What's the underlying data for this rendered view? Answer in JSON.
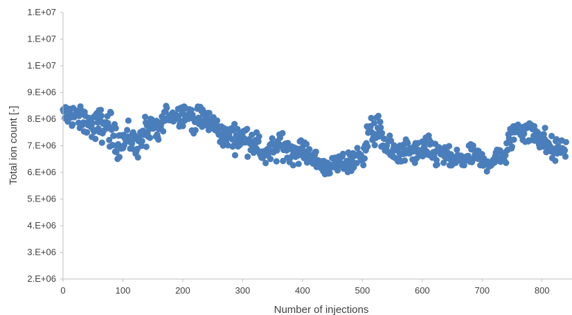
{
  "chart_data": {
    "type": "scatter",
    "title": "",
    "xlabel": "Number of injections",
    "ylabel": "Total ion count [-]",
    "xlim": [
      0,
      850
    ],
    "ylim": [
      2000000,
      12000000
    ],
    "x_ticks": [
      0,
      100,
      200,
      300,
      400,
      500,
      600,
      700,
      800
    ],
    "x_tick_labels": [
      "0",
      "100",
      "200",
      "300",
      "400",
      "500",
      "600",
      "700",
      "800"
    ],
    "y_ticks": [
      2000000,
      3000000,
      4000000,
      5000000,
      6000000,
      7000000,
      8000000,
      9000000,
      10000000,
      11000000,
      12000000
    ],
    "y_tick_labels": [
      "2.E+06",
      "3.E+06",
      "4.E+06",
      "5.E+06",
      "6.E+06",
      "7.E+06",
      "8.E+06",
      "9.E+06",
      "1.E+07",
      "1.E+07",
      "1.E+07"
    ],
    "grid": false,
    "marker_color": "#4a7ebb",
    "series": [
      {
        "x": [
          0,
          10,
          20,
          30,
          40,
          50,
          60,
          70,
          80,
          90,
          100,
          110,
          120,
          130,
          140,
          150,
          160,
          170,
          180,
          190,
          200,
          210,
          220,
          230,
          240,
          250,
          260,
          270,
          280,
          290,
          300,
          310,
          320,
          330,
          340,
          350,
          360,
          370,
          380,
          390,
          400,
          410,
          420,
          430,
          440,
          450,
          460,
          470,
          480,
          490,
          500,
          510,
          520,
          530,
          540,
          550,
          560,
          570,
          580,
          590,
          600,
          610,
          620,
          630,
          640,
          650,
          660,
          670,
          680,
          690,
          700,
          710,
          720,
          730,
          740,
          750,
          760,
          770,
          780,
          790,
          800,
          810,
          820,
          830,
          840,
          850
        ],
        "y": [
          8100000,
          8200000,
          8100000,
          8000000,
          7900000,
          7700000,
          7800000,
          7800000,
          7500000,
          7200000,
          7200000,
          7300000,
          7100000,
          7200000,
          7600000,
          7500000,
          7500000,
          8100000,
          8200000,
          8100000,
          8200000,
          8100000,
          8000000,
          8000000,
          8000000,
          7800000,
          7600000,
          7300000,
          7400000,
          7300000,
          7300000,
          7300000,
          7100000,
          6800000,
          6700000,
          6800000,
          7000000,
          7000000,
          6800000,
          6800000,
          6800000,
          6700000,
          6500000,
          6300000,
          6200000,
          6200000,
          6400000,
          6400000,
          6400000,
          6500000,
          6700000,
          7400000,
          7600000,
          7400000,
          7000000,
          6700000,
          6700000,
          6800000,
          6800000,
          6700000,
          6800000,
          6900000,
          6700000,
          6700000,
          6600000,
          6400000,
          6500000,
          6500000,
          6600000,
          6600000,
          6400000,
          6400000,
          6500000,
          6600000,
          6700000,
          7400000,
          7700000,
          7600000,
          7500000,
          7500000,
          7300000,
          7000000,
          6800000,
          6900000,
          6900000,
          6800000
        ],
        "spread": [
          350000,
          350000,
          350000,
          350000,
          380000,
          380000,
          420000,
          450000,
          450000,
          420000,
          400000,
          380000,
          380000,
          420000,
          420000,
          450000,
          480000,
          300000,
          260000,
          260000,
          280000,
          320000,
          320000,
          320000,
          320000,
          320000,
          320000,
          320000,
          320000,
          330000,
          340000,
          350000,
          350000,
          330000,
          320000,
          320000,
          320000,
          320000,
          300000,
          300000,
          300000,
          260000,
          260000,
          220000,
          220000,
          250000,
          280000,
          280000,
          270000,
          280000,
          320000,
          400000,
          480000,
          420000,
          380000,
          320000,
          320000,
          300000,
          300000,
          300000,
          300000,
          300000,
          300000,
          300000,
          270000,
          260000,
          260000,
          260000,
          260000,
          260000,
          260000,
          260000,
          260000,
          300000,
          350000,
          380000,
          350000,
          350000,
          350000,
          350000,
          350000,
          320000,
          300000,
          300000,
          300000,
          300000
        ],
        "count": 840
      }
    ]
  }
}
